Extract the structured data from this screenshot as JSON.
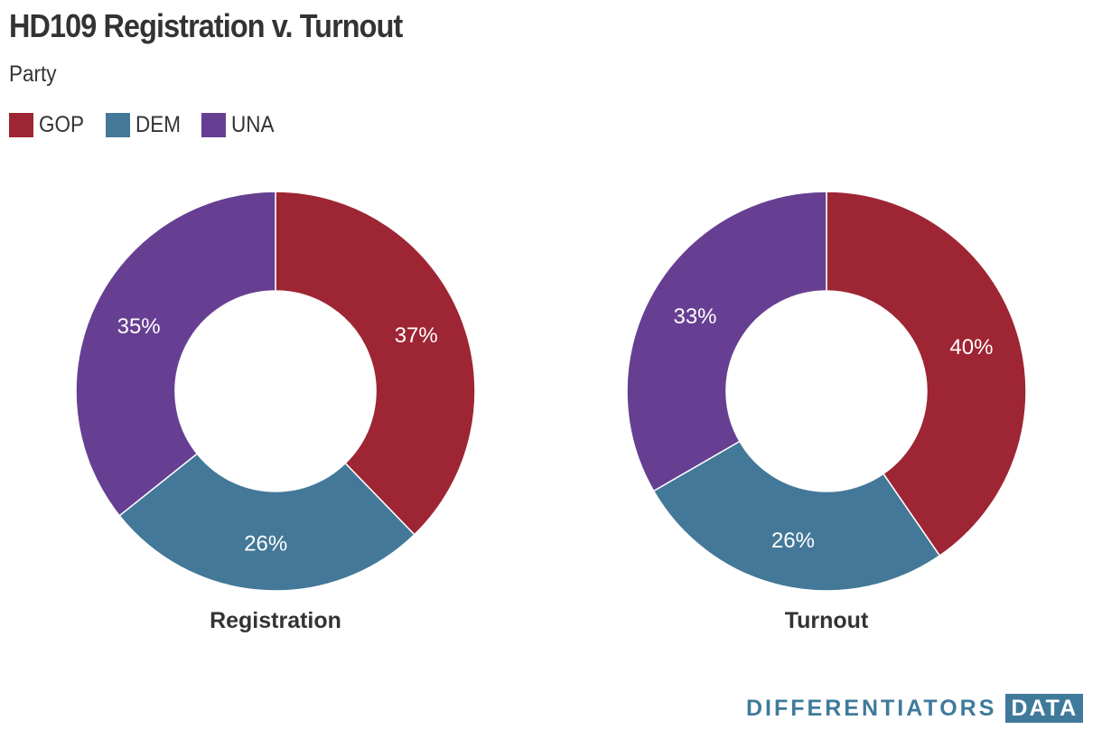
{
  "chart_data": {
    "type": "pie",
    "title": "HD109 Registration v. Turnout",
    "subtitle": "Party",
    "legend": [
      {
        "label": "GOP",
        "color": "#9e2533"
      },
      {
        "label": "DEM",
        "color": "#437898"
      },
      {
        "label": "UNA",
        "color": "#663f92"
      }
    ],
    "charts": [
      {
        "name": "Registration",
        "slices": [
          {
            "label": "GOP",
            "value": 37,
            "display": "37%",
            "color": "#9e2533"
          },
          {
            "label": "DEM",
            "value": 26,
            "display": "26%",
            "color": "#437898"
          },
          {
            "label": "UNA",
            "value": 35,
            "display": "35%",
            "color": "#663f92"
          }
        ]
      },
      {
        "name": "Turnout",
        "slices": [
          {
            "label": "GOP",
            "value": 40,
            "display": "40%",
            "color": "#9e2533"
          },
          {
            "label": "DEM",
            "value": 26,
            "display": "26%",
            "color": "#437898"
          },
          {
            "label": "UNA",
            "value": 33,
            "display": "33%",
            "color": "#663f92"
          }
        ]
      }
    ]
  },
  "brand": {
    "word": "DIFFERENTIATORS",
    "box": "DATA"
  }
}
